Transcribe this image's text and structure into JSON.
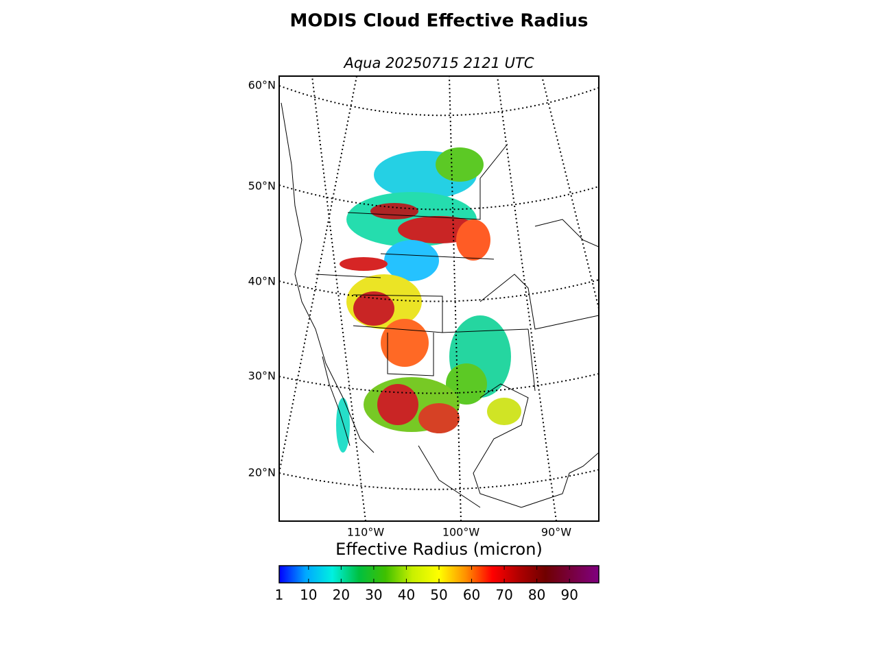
{
  "chart_data": {
    "type": "map",
    "title": "MODIS Cloud Effective Radius",
    "subtitle": "Aqua 20250715 2121 UTC",
    "lat_labels": [
      "60°N",
      "50°N",
      "40°N",
      "30°N",
      "20°N"
    ],
    "lon_labels": [
      "110°W",
      "100°W",
      "90°W"
    ],
    "colorbar": {
      "label": "Effective Radius (micron)",
      "clim": [
        1,
        99
      ],
      "cticks": [
        1,
        10,
        20,
        30,
        40,
        50,
        60,
        70,
        80,
        90
      ],
      "colormap": [
        "#0000ff",
        "#00a8ff",
        "#00f0e0",
        "#00c040",
        "#40c000",
        "#c8f000",
        "#ffff00",
        "#ff9000",
        "#ff0000",
        "#b00000",
        "#700000",
        "#780040",
        "#800080"
      ]
    }
  }
}
